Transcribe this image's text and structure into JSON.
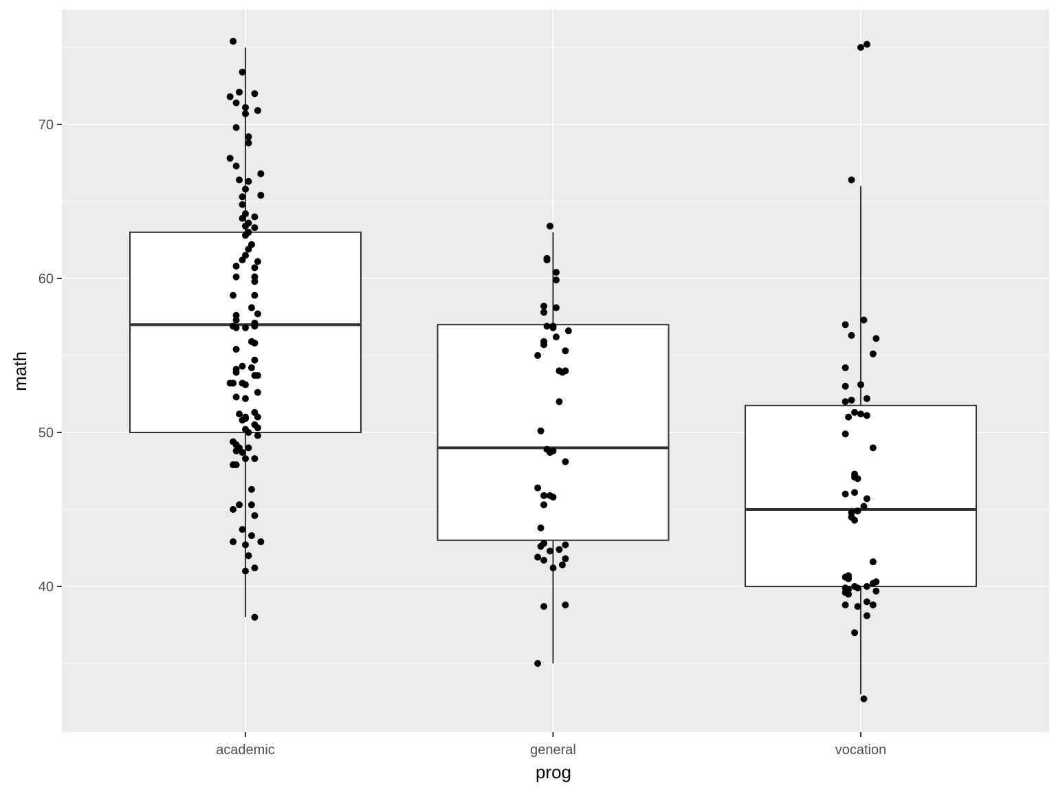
{
  "chart_data": {
    "type": "boxplot",
    "title": "",
    "xlabel": "prog",
    "ylabel": "math",
    "categories": [
      "academic",
      "general",
      "vocation"
    ],
    "ylim": [
      30.5,
      77.5
    ],
    "yticks": [
      40,
      50,
      60,
      70
    ],
    "grid": true,
    "legend": "none",
    "colors": {
      "panel": "#ebebeb",
      "grid": "#ffffff",
      "box_fill": "#ffffff",
      "box_line": "#333333",
      "point": "#000000",
      "tick_text": "#4d4d4d"
    },
    "boxes": [
      {
        "category": "academic",
        "lower_whisker": 38,
        "q1": 50,
        "median": 57,
        "q3": 63,
        "upper_whisker": 75,
        "outliers": []
      },
      {
        "category": "general",
        "lower_whisker": 35,
        "q1": 43,
        "median": 49,
        "q3": 57,
        "upper_whisker": 63,
        "outliers": []
      },
      {
        "category": "vocation",
        "lower_whisker": 33,
        "q1": 40,
        "median": 45,
        "q3": 51.75,
        "upper_whisker": 66,
        "outliers": [
          75,
          75.2
        ]
      }
    ],
    "points": {
      "academic": [
        [
          -0.04,
          75.4
        ],
        [
          -0.01,
          73.4
        ],
        [
          -0.02,
          72.1
        ],
        [
          0.03,
          72.0
        ],
        [
          -0.05,
          71.8
        ],
        [
          -0.03,
          71.4
        ],
        [
          0.0,
          71.1
        ],
        [
          0.04,
          70.9
        ],
        [
          0.0,
          70.7
        ],
        [
          -0.03,
          69.8
        ],
        [
          0.01,
          69.2
        ],
        [
          0.01,
          68.8
        ],
        [
          -0.05,
          67.8
        ],
        [
          -0.03,
          67.3
        ],
        [
          0.05,
          66.8
        ],
        [
          -0.02,
          66.4
        ],
        [
          0.01,
          66.3
        ],
        [
          0.0,
          65.8
        ],
        [
          -0.01,
          65.3
        ],
        [
          0.05,
          65.4
        ],
        [
          -0.01,
          64.8
        ],
        [
          0.0,
          64.2
        ],
        [
          0.03,
          64.0
        ],
        [
          -0.01,
          63.9
        ],
        [
          0.01,
          63.6
        ],
        [
          0.0,
          63.4
        ],
        [
          0.03,
          63.3
        ],
        [
          0.01,
          63.0
        ],
        [
          0.0,
          62.8
        ],
        [
          0.02,
          62.2
        ],
        [
          0.01,
          61.9
        ],
        [
          0.0,
          61.5
        ],
        [
          -0.01,
          61.2
        ],
        [
          0.04,
          61.1
        ],
        [
          -0.03,
          60.8
        ],
        [
          0.03,
          60.7
        ],
        [
          -0.03,
          60.1
        ],
        [
          0.03,
          60.1
        ],
        [
          0.03,
          59.8
        ],
        [
          -0.04,
          58.9
        ],
        [
          0.03,
          58.9
        ],
        [
          0.02,
          58.1
        ],
        [
          -0.03,
          57.6
        ],
        [
          0.04,
          57.7
        ],
        [
          -0.03,
          57.3
        ],
        [
          0.03,
          57.1
        ],
        [
          -0.04,
          56.9
        ],
        [
          -0.03,
          56.8
        ],
        [
          0.0,
          56.8
        ],
        [
          0.03,
          56.9
        ],
        [
          0.02,
          55.9
        ],
        [
          0.03,
          55.8
        ],
        [
          -0.03,
          55.4
        ],
        [
          0.03,
          54.7
        ],
        [
          -0.01,
          54.3
        ],
        [
          -0.03,
          54.1
        ],
        [
          0.02,
          54.2
        ],
        [
          -0.03,
          53.9
        ],
        [
          0.04,
          53.7
        ],
        [
          0.03,
          53.7
        ],
        [
          -0.05,
          53.2
        ],
        [
          -0.04,
          53.2
        ],
        [
          -0.01,
          53.2
        ],
        [
          0.0,
          53.1
        ],
        [
          0.04,
          52.6
        ],
        [
          -0.03,
          52.3
        ],
        [
          0.0,
          52.2
        ],
        [
          -0.02,
          51.2
        ],
        [
          0.03,
          51.3
        ],
        [
          0.0,
          51.0
        ],
        [
          0.04,
          51.0
        ],
        [
          -0.01,
          50.8
        ],
        [
          0.0,
          50.9
        ],
        [
          0.03,
          50.5
        ],
        [
          0.04,
          50.3
        ],
        [
          0.0,
          50.2
        ],
        [
          0.01,
          50.0
        ],
        [
          0.04,
          49.8
        ],
        [
          -0.04,
          49.4
        ],
        [
          -0.03,
          49.2
        ],
        [
          -0.02,
          49.0
        ],
        [
          0.01,
          49.0
        ],
        [
          -0.03,
          48.8
        ],
        [
          -0.01,
          48.7
        ],
        [
          0.0,
          48.3
        ],
        [
          0.03,
          48.3
        ],
        [
          -0.04,
          47.9
        ],
        [
          -0.03,
          47.9
        ],
        [
          0.02,
          46.3
        ],
        [
          -0.04,
          45.0
        ],
        [
          -0.02,
          45.3
        ],
        [
          0.02,
          45.3
        ],
        [
          0.03,
          44.6
        ],
        [
          -0.01,
          43.7
        ],
        [
          0.02,
          43.3
        ],
        [
          -0.04,
          42.9
        ],
        [
          0.0,
          42.7
        ],
        [
          0.05,
          42.9
        ],
        [
          0.01,
          42.0
        ],
        [
          0.03,
          41.2
        ],
        [
          0.0,
          41.0
        ],
        [
          0.03,
          38.0
        ]
      ],
      "general": [
        [
          -0.01,
          63.4
        ],
        [
          -0.02,
          61.3
        ],
        [
          -0.02,
          61.2
        ],
        [
          0.01,
          60.4
        ],
        [
          0.01,
          59.9
        ],
        [
          -0.03,
          58.2
        ],
        [
          0.01,
          58.1
        ],
        [
          -0.03,
          57.8
        ],
        [
          -0.02,
          56.9
        ],
        [
          0.0,
          56.9
        ],
        [
          0.0,
          56.8
        ],
        [
          0.05,
          56.6
        ],
        [
          0.01,
          56.2
        ],
        [
          -0.03,
          55.9
        ],
        [
          -0.03,
          55.7
        ],
        [
          0.04,
          55.3
        ],
        [
          -0.05,
          55.0
        ],
        [
          0.02,
          54.0
        ],
        [
          0.04,
          54.0
        ],
        [
          0.03,
          53.9
        ],
        [
          0.02,
          52.0
        ],
        [
          -0.04,
          50.1
        ],
        [
          -0.02,
          48.9
        ],
        [
          -0.01,
          48.7
        ],
        [
          0.0,
          48.8
        ],
        [
          0.04,
          48.1
        ],
        [
          -0.05,
          46.4
        ],
        [
          -0.03,
          45.9
        ],
        [
          -0.01,
          45.9
        ],
        [
          0.0,
          45.8
        ],
        [
          -0.03,
          45.3
        ],
        [
          -0.04,
          43.8
        ],
        [
          -0.04,
          42.6
        ],
        [
          -0.03,
          42.8
        ],
        [
          0.04,
          42.7
        ],
        [
          -0.01,
          42.3
        ],
        [
          0.02,
          42.4
        ],
        [
          -0.05,
          41.9
        ],
        [
          -0.03,
          41.7
        ],
        [
          0.04,
          41.8
        ],
        [
          0.03,
          41.4
        ],
        [
          0.0,
          41.2
        ],
        [
          -0.03,
          38.7
        ],
        [
          0.04,
          38.8
        ],
        [
          -0.05,
          35.0
        ]
      ],
      "vocation": [
        [
          0.02,
          75.2
        ],
        [
          0.0,
          75.0
        ],
        [
          -0.03,
          66.4
        ],
        [
          0.01,
          57.3
        ],
        [
          -0.05,
          57.0
        ],
        [
          -0.03,
          56.3
        ],
        [
          0.05,
          56.1
        ],
        [
          0.04,
          55.1
        ],
        [
          -0.05,
          54.2
        ],
        [
          -0.05,
          53.0
        ],
        [
          0.0,
          53.1
        ],
        [
          -0.05,
          52.0
        ],
        [
          -0.03,
          52.1
        ],
        [
          0.02,
          52.2
        ],
        [
          -0.02,
          51.3
        ],
        [
          0.0,
          51.2
        ],
        [
          -0.04,
          51.0
        ],
        [
          0.02,
          51.1
        ],
        [
          -0.05,
          49.9
        ],
        [
          0.04,
          49.0
        ],
        [
          -0.02,
          47.3
        ],
        [
          -0.02,
          47.1
        ],
        [
          -0.01,
          47.0
        ],
        [
          -0.05,
          46.0
        ],
        [
          -0.02,
          46.1
        ],
        [
          0.02,
          45.7
        ],
        [
          0.01,
          45.2
        ],
        [
          -0.03,
          44.8
        ],
        [
          -0.01,
          44.9
        ],
        [
          -0.03,
          44.5
        ],
        [
          -0.02,
          44.3
        ],
        [
          0.04,
          41.6
        ],
        [
          -0.05,
          40.6
        ],
        [
          -0.04,
          40.7
        ],
        [
          -0.04,
          40.5
        ],
        [
          0.05,
          40.3
        ],
        [
          0.04,
          40.2
        ],
        [
          -0.05,
          39.9
        ],
        [
          -0.04,
          39.8
        ],
        [
          -0.02,
          40.0
        ],
        [
          -0.01,
          39.9
        ],
        [
          0.02,
          40.0
        ],
        [
          -0.05,
          39.6
        ],
        [
          -0.04,
          39.5
        ],
        [
          0.05,
          39.7
        ],
        [
          0.02,
          39.0
        ],
        [
          0.04,
          38.8
        ],
        [
          -0.05,
          38.8
        ],
        [
          -0.01,
          38.7
        ],
        [
          0.02,
          38.1
        ],
        [
          -0.02,
          37.0
        ],
        [
          0.01,
          32.7
        ]
      ]
    }
  },
  "axes": {
    "x_title": "prog",
    "y_title": "math",
    "x_ticks": [
      "academic",
      "general",
      "vocation"
    ],
    "y_ticks": [
      "40",
      "50",
      "60",
      "70"
    ]
  }
}
